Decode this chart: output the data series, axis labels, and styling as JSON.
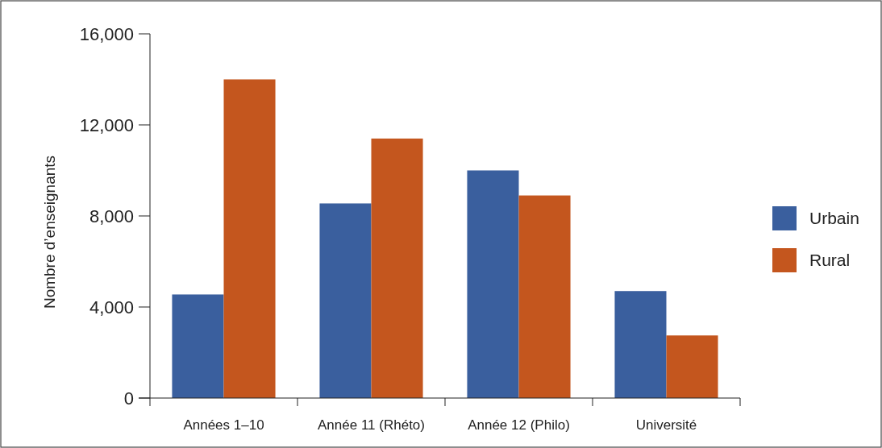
{
  "chart_data": {
    "type": "bar",
    "ylabel": "Nombre d’enseignants",
    "categories": [
      "Années 1–10",
      "Année 11 (Rhéto)",
      "Année 12 (Philo)",
      "Université"
    ],
    "series": [
      {
        "name": "Urbain",
        "color": "#3a5f9e",
        "values": [
          4550,
          8550,
          10000,
          4700
        ]
      },
      {
        "name": "Rural",
        "color": "#c4561e",
        "values": [
          14000,
          11400,
          8900,
          2750
        ]
      }
    ],
    "ylim": [
      0,
      16000
    ],
    "yticks": [
      {
        "value": 0,
        "label": "0"
      },
      {
        "value": 4000,
        "label": "4,000"
      },
      {
        "value": 8000,
        "label": "8,000"
      },
      {
        "value": 12000,
        "label": "12,000"
      },
      {
        "value": 16000,
        "label": "16,000"
      }
    ],
    "grid": false,
    "legend": "right"
  }
}
